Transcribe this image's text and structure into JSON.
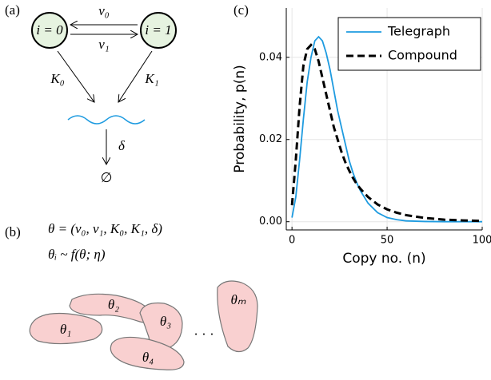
{
  "panel_a": {
    "label": "(a)",
    "state0": "i = 0",
    "state1": "i = 1",
    "rate_on": "ν₀",
    "rate_off": "ν₁",
    "prod0": "K₀",
    "prod1": "K₁",
    "decay": "δ",
    "empty": "∅"
  },
  "panel_b": {
    "label": "(b)",
    "theta_def": "θ = (ν₀, ν₁, K₀, K₁, δ)",
    "theta_dist": "θᵢ ~ f(θ; η)",
    "cells": [
      "θ₁",
      "θ₂",
      "θ₃",
      "θ₄",
      "θₘ"
    ],
    "ellipsis": "· · ·"
  },
  "chart_data": {
    "type": "line",
    "panel_label": "(c)",
    "xlabel": "Copy no. (n)",
    "ylabel": "Probability, p(n)",
    "x": [
      0,
      2,
      4,
      6,
      8,
      10,
      12,
      14,
      16,
      18,
      20,
      22,
      24,
      26,
      28,
      30,
      32,
      34,
      36,
      38,
      40,
      45,
      50,
      55,
      60,
      70,
      80,
      90,
      100
    ],
    "series": [
      {
        "name": "Telegraph",
        "color": "#1e9be0",
        "dash": false,
        "values": [
          0.001,
          0.006,
          0.015,
          0.025,
          0.034,
          0.04,
          0.044,
          0.045,
          0.044,
          0.041,
          0.037,
          0.032,
          0.027,
          0.023,
          0.019,
          0.015,
          0.012,
          0.0095,
          0.0075,
          0.006,
          0.0045,
          0.0022,
          0.001,
          0.0005,
          0.0002,
          5e-05,
          0,
          0,
          0
        ]
      },
      {
        "name": "Compound",
        "color": "#000000",
        "dash": true,
        "values": [
          0.004,
          0.015,
          0.028,
          0.038,
          0.042,
          0.043,
          0.042,
          0.039,
          0.035,
          0.031,
          0.027,
          0.023,
          0.02,
          0.017,
          0.0145,
          0.0125,
          0.0107,
          0.0092,
          0.008,
          0.007,
          0.006,
          0.0042,
          0.003,
          0.0022,
          0.0016,
          0.0009,
          0.0005,
          0.0003,
          0.0002
        ]
      }
    ],
    "xlim": [
      -3,
      100
    ],
    "ylim": [
      -0.002,
      0.052
    ],
    "xticks": [
      0,
      50,
      100
    ],
    "yticks": [
      {
        "value": 0,
        "label": "0.00"
      },
      {
        "value": 0.02,
        "label": "0.02"
      },
      {
        "value": 0.04,
        "label": "0.04"
      }
    ],
    "grid": true,
    "legend": "upper-right"
  }
}
